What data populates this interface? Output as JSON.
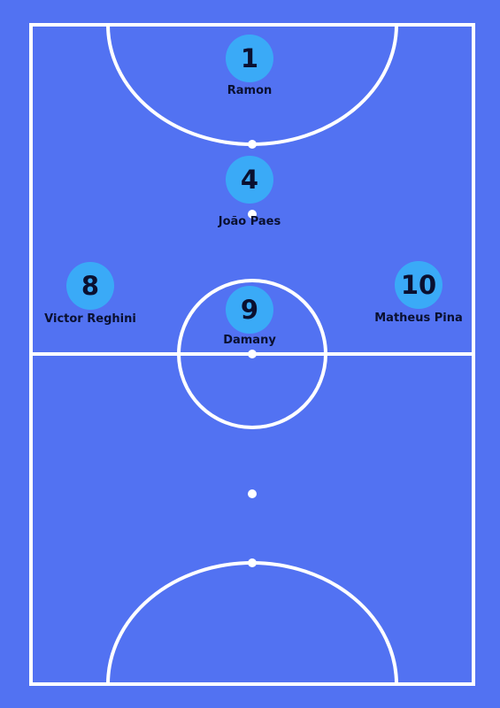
{
  "court": {
    "background_color": "#5272f2",
    "line_color": "#ffffff",
    "player_circle_color": "#3aaaf7",
    "text_color": "#0a1030"
  },
  "players": [
    {
      "number": "1",
      "name": "Ramon"
    },
    {
      "number": "4",
      "name": "João Paes"
    },
    {
      "number": "8",
      "name": "Victor Reghini"
    },
    {
      "number": "9",
      "name": "Damany"
    },
    {
      "number": "10",
      "name": "Matheus Pina"
    }
  ]
}
